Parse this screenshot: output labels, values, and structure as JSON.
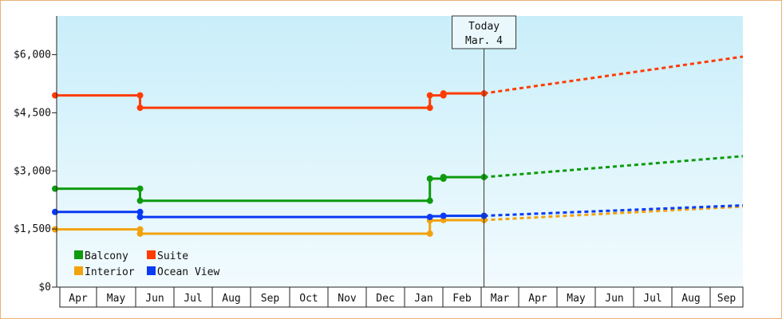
{
  "chart_data": {
    "type": "line",
    "subtype": "step-with-projection",
    "y_ticks": [
      {
        "value": 0,
        "label": "$0"
      },
      {
        "value": 1500,
        "label": "$1,500"
      },
      {
        "value": 3000,
        "label": "$3,000"
      },
      {
        "value": 4500,
        "label": "$4,500"
      },
      {
        "value": 6000,
        "label": "$6,000"
      }
    ],
    "ylim": [
      0,
      7000
    ],
    "x_months": [
      "Apr",
      "May",
      "Jun",
      "Jul",
      "Aug",
      "Sep",
      "Oct",
      "Nov",
      "Dec",
      "Jan",
      "Feb",
      "Mar",
      "Apr",
      "May",
      "Jun",
      "Jul",
      "Aug",
      "Sep"
    ],
    "xlim": [
      0,
      17.8
    ],
    "today": {
      "line1": "Today",
      "line2": "Mar. 4",
      "x": 11.1
    },
    "legend": {
      "position": "bottom-left"
    },
    "series": [
      {
        "name": "Suite",
        "color": "#ff3c00",
        "points": [
          [
            0,
            4950
          ],
          [
            2.2,
            4950
          ],
          [
            2.2,
            4630
          ],
          [
            9.7,
            4630
          ],
          [
            9.7,
            4950
          ],
          [
            10.05,
            4950
          ],
          [
            10.05,
            5000
          ],
          [
            11.1,
            5000
          ]
        ],
        "markers": [
          [
            0,
            4950
          ],
          [
            2.2,
            4950
          ],
          [
            2.2,
            4630
          ],
          [
            9.7,
            4630
          ],
          [
            9.7,
            4950
          ],
          [
            10.05,
            4950
          ],
          [
            10.05,
            5000
          ],
          [
            11.1,
            5000
          ]
        ],
        "projection": [
          [
            11.1,
            5000
          ],
          [
            17.8,
            5950
          ]
        ]
      },
      {
        "name": "Balcony",
        "color": "#0e9b0e",
        "points": [
          [
            0,
            2540
          ],
          [
            2.2,
            2540
          ],
          [
            2.2,
            2230
          ],
          [
            9.7,
            2230
          ],
          [
            9.7,
            2800
          ],
          [
            10.05,
            2800
          ],
          [
            10.05,
            2840
          ],
          [
            11.1,
            2840
          ]
        ],
        "markers": [
          [
            0,
            2540
          ],
          [
            2.2,
            2540
          ],
          [
            2.2,
            2230
          ],
          [
            9.7,
            2230
          ],
          [
            9.7,
            2800
          ],
          [
            10.05,
            2800
          ],
          [
            10.05,
            2840
          ],
          [
            11.1,
            2840
          ]
        ],
        "projection": [
          [
            11.1,
            2840
          ],
          [
            17.8,
            3380
          ]
        ]
      },
      {
        "name": "Interior",
        "color": "#f2a20e",
        "points": [
          [
            0,
            1490
          ],
          [
            2.2,
            1490
          ],
          [
            2.2,
            1380
          ],
          [
            9.7,
            1380
          ],
          [
            9.7,
            1720
          ],
          [
            10.05,
            1720
          ],
          [
            10.05,
            1730
          ],
          [
            11.1,
            1730
          ]
        ],
        "markers": [
          [
            0,
            1490
          ],
          [
            2.2,
            1490
          ],
          [
            2.2,
            1380
          ],
          [
            9.7,
            1380
          ],
          [
            9.7,
            1720
          ],
          [
            10.05,
            1730
          ],
          [
            11.1,
            1730
          ]
        ],
        "projection": [
          [
            11.1,
            1730
          ],
          [
            17.8,
            2080
          ]
        ]
      },
      {
        "name": "Ocean View",
        "color": "#0a3af2",
        "points": [
          [
            0,
            1940
          ],
          [
            2.2,
            1940
          ],
          [
            2.2,
            1810
          ],
          [
            9.7,
            1810
          ],
          [
            9.7,
            1830
          ],
          [
            10.05,
            1830
          ],
          [
            10.05,
            1840
          ],
          [
            11.1,
            1840
          ]
        ],
        "markers": [
          [
            0,
            1940
          ],
          [
            2.2,
            1940
          ],
          [
            2.2,
            1810
          ],
          [
            9.7,
            1810
          ],
          [
            10.05,
            1840
          ],
          [
            11.1,
            1840
          ]
        ],
        "projection": [
          [
            11.1,
            1840
          ],
          [
            17.8,
            2110
          ]
        ]
      }
    ]
  },
  "legend_items": [
    {
      "label": "Balcony",
      "color": "#0e9b0e"
    },
    {
      "label": "Suite",
      "color": "#ff3c00"
    },
    {
      "label": "Interior",
      "color": "#f2a20e"
    },
    {
      "label": "Ocean View",
      "color": "#0a3af2"
    }
  ]
}
